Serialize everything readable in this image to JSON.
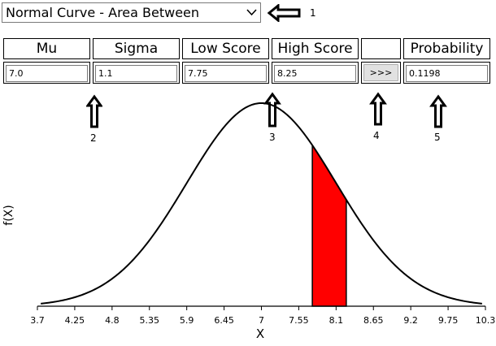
{
  "dropdown": {
    "selected": "Normal Curve - Area Between"
  },
  "headers": {
    "mu": "Mu",
    "sigma": "Sigma",
    "low": "Low Score",
    "high": "High Score",
    "blank": "",
    "probability": "Probability"
  },
  "inputs": {
    "mu": "7.0",
    "sigma": "1.1",
    "low": "7.75",
    "high": "8.25",
    "probability": "0.1198"
  },
  "compute_button": {
    "label": ">>>"
  },
  "markers": [
    "1",
    "2",
    "3",
    "4",
    "5"
  ],
  "colors": {
    "shaded": "#ff0000",
    "curve": "#000000"
  },
  "chart_data": {
    "type": "area",
    "mu": 7.0,
    "sigma": 1.1,
    "shade_low": 7.75,
    "shade_high": 8.25,
    "xlim": [
      3.7,
      10.3
    ],
    "xticks": [
      "3.7",
      "4.25",
      "4.8",
      "5.35",
      "5.9",
      "6.45",
      "7",
      "7.55",
      "8.1",
      "8.65",
      "9.2",
      "9.75",
      "10.3"
    ],
    "xlabel": "X",
    "ylabel": "f(X)",
    "grid": false
  }
}
